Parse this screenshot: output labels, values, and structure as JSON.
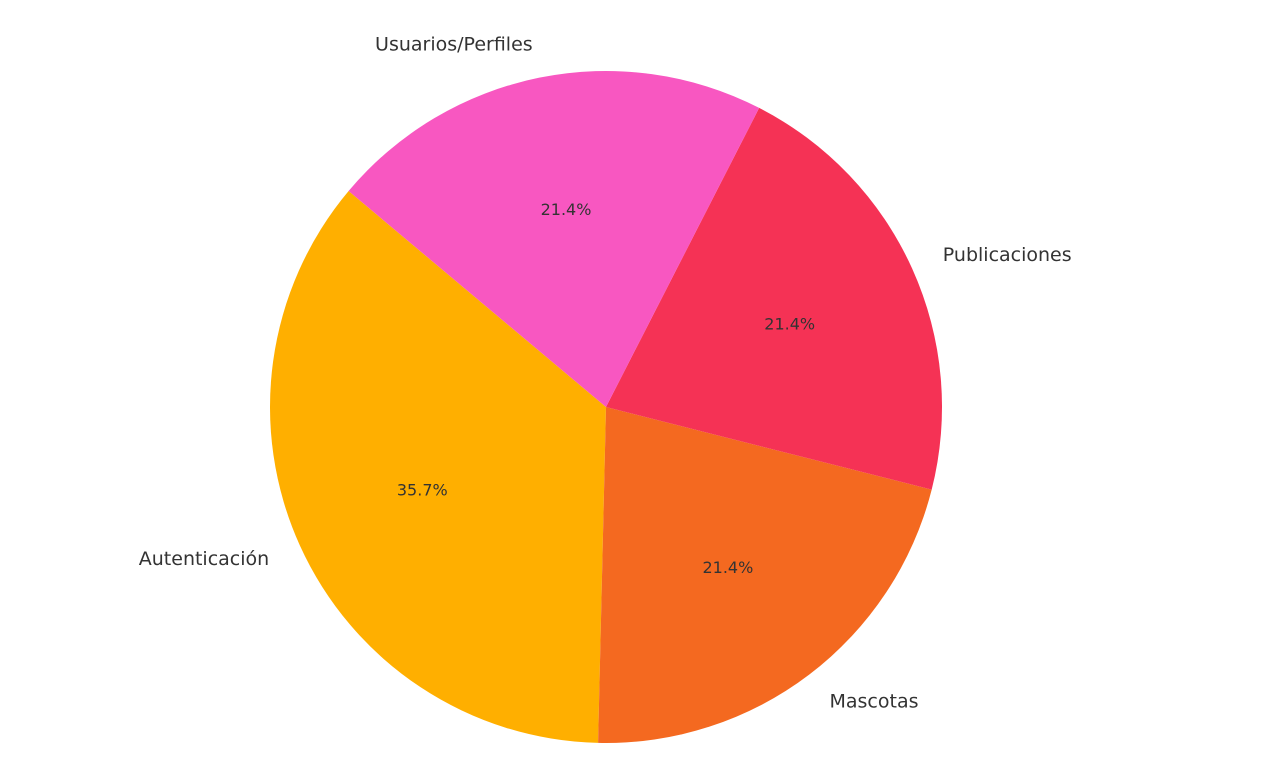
{
  "chart_data": {
    "type": "pie",
    "title": "",
    "start_angle_deg": 140,
    "direction": "counterclockwise",
    "slices": [
      {
        "label": "Autenticación",
        "value": 35.7,
        "pct_label": "35.7%",
        "color": "#FFAF00"
      },
      {
        "label": "Mascotas",
        "value": 21.4,
        "pct_label": "21.4%",
        "color": "#F46920"
      },
      {
        "label": "Publicaciones",
        "value": 21.4,
        "pct_label": "21.4%",
        "color": "#F53255"
      },
      {
        "label": "Usuarios/Perfiles",
        "value": 21.4,
        "pct_label": "21.4%",
        "color": "#F857C1"
      }
    ]
  }
}
